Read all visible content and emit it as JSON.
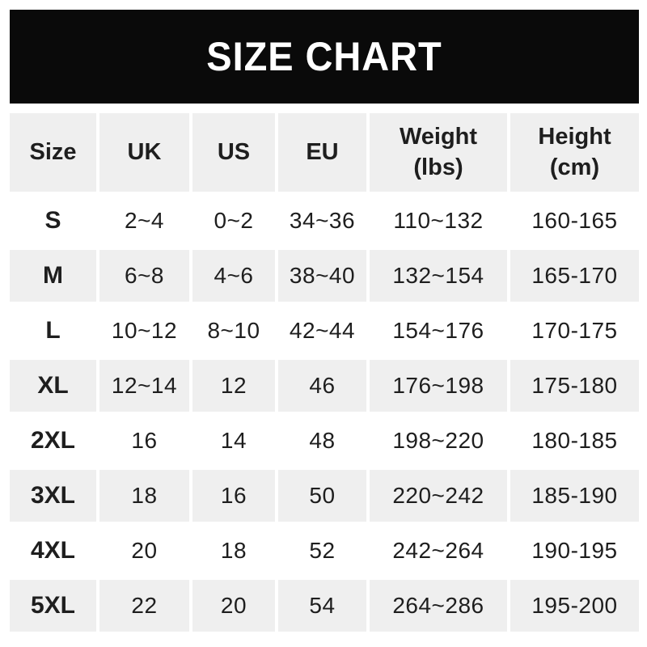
{
  "title": "SIZE CHART",
  "colors": {
    "banner_bg": "#0a0a0a",
    "banner_text": "#ffffff",
    "shaded_row_bg": "#efefef",
    "text": "#1e1e1e"
  },
  "table": {
    "column_labels": [
      "Size",
      "UK",
      "US",
      "EU",
      "Weight\n(lbs)",
      "Height\n(cm)"
    ],
    "rows": [
      [
        "S",
        "2~4",
        "0~2",
        "34~36",
        "110~132",
        "160-165"
      ],
      [
        "M",
        "6~8",
        "4~6",
        "38~40",
        "132~154",
        "165-170"
      ],
      [
        "L",
        "10~12",
        "8~10",
        "42~44",
        "154~176",
        "170-175"
      ],
      [
        "XL",
        "12~14",
        "12",
        "46",
        "176~198",
        "175-180"
      ],
      [
        "2XL",
        "16",
        "14",
        "48",
        "198~220",
        "180-185"
      ],
      [
        "3XL",
        "18",
        "16",
        "50",
        "220~242",
        "185-190"
      ],
      [
        "4XL",
        "20",
        "18",
        "52",
        "242~264",
        "190-195"
      ],
      [
        "5XL",
        "22",
        "20",
        "54",
        "264~286",
        "195-200"
      ]
    ]
  },
  "chart_data": {
    "type": "table",
    "title": "SIZE CHART",
    "columns": [
      "Size",
      "UK",
      "US",
      "EU",
      "Weight (lbs)",
      "Height (cm)"
    ],
    "rows": [
      [
        "S",
        "2~4",
        "0~2",
        "34~36",
        "110~132",
        "160-165"
      ],
      [
        "M",
        "6~8",
        "4~6",
        "38~40",
        "132~154",
        "165-170"
      ],
      [
        "L",
        "10~12",
        "8~10",
        "42~44",
        "154~176",
        "170-175"
      ],
      [
        "XL",
        "12~14",
        "12",
        "46",
        "176~198",
        "175-180"
      ],
      [
        "2XL",
        "16",
        "14",
        "48",
        "198~220",
        "180-185"
      ],
      [
        "3XL",
        "18",
        "16",
        "50",
        "220~242",
        "185-190"
      ],
      [
        "4XL",
        "20",
        "18",
        "52",
        "242~264",
        "190-195"
      ],
      [
        "5XL",
        "22",
        "20",
        "54",
        "264~286",
        "195-200"
      ]
    ],
    "layout": {
      "header_shaded": true,
      "alternating_rows": "shaded starts at header, then every second data row (M, XL, 3XL, 5XL)"
    }
  }
}
